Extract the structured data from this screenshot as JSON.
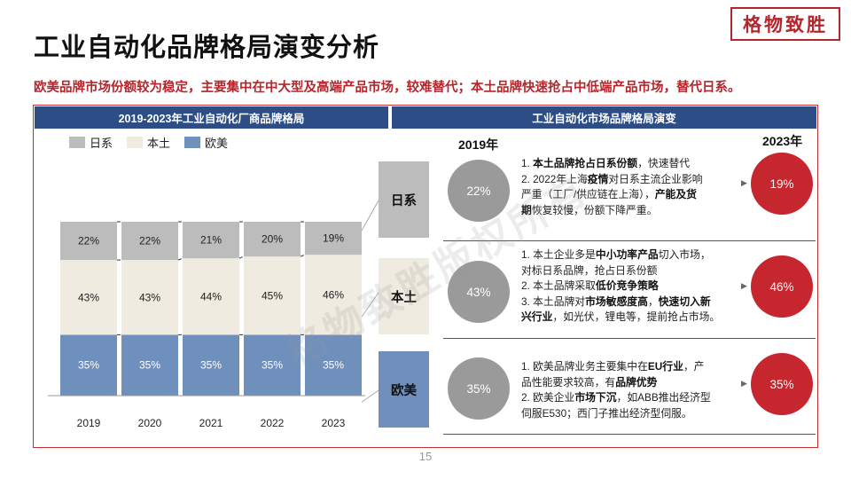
{
  "title": "工业自动化品牌格局演变分析",
  "brand_stamp": "格物致胜",
  "subtitle": "欧美品牌市场份额较为稳定，主要集中在中大型及高端产品市场，较难替代；本土品牌快速抢占中低端产品市场，替代日系。",
  "left_header": "2019-2023年工业自动化厂商品牌格局",
  "right_header": "工业自动化市场品牌格局演变",
  "colors": {
    "japan": "#bcbcbc",
    "local": "#efebe0",
    "western": "#6f8fbd",
    "accent_red": "#c6262e",
    "header_blue": "#2c4d86"
  },
  "chart_data": {
    "type": "bar",
    "stacked": true,
    "categories": [
      "2019",
      "2020",
      "2021",
      "2022",
      "2023"
    ],
    "series": [
      {
        "name": "欧美",
        "values": [
          35,
          35,
          35,
          35,
          35
        ],
        "labels": [
          "35%",
          "35%",
          "35%",
          "35%",
          "35%"
        ]
      },
      {
        "name": "本土",
        "values": [
          43,
          43,
          44,
          45,
          46
        ],
        "labels": [
          "43%",
          "43%",
          "44%",
          "45%",
          "46%"
        ]
      },
      {
        "name": "日系",
        "values": [
          22,
          22,
          21,
          20,
          19
        ],
        "labels": [
          "22%",
          "22%",
          "21%",
          "20%",
          "19%"
        ]
      }
    ],
    "ylim": [
      0,
      100
    ],
    "legend_position": "top-left",
    "legend": [
      "日系",
      "本土",
      "欧美"
    ]
  },
  "year_start": "2019年",
  "year_end": "2023年",
  "rows": [
    {
      "category": "日系",
      "start": "22%",
      "end": "19%",
      "lines": [
        [
          {
            "t": "1. "
          },
          {
            "t": "本土品牌抢占日系份额",
            "b": true
          },
          {
            "t": "，快速替代"
          }
        ],
        [
          {
            "t": "2. 2022年上海"
          },
          {
            "t": "疫情",
            "b": true
          },
          {
            "t": "对日系主流企业影响"
          }
        ],
        [
          {
            "t": "严重（工厂/供应链在上海），"
          },
          {
            "t": "产能及货",
            "b": true
          }
        ],
        [
          {
            "t": "期",
            "b": true
          },
          {
            "t": "恢复较慢，份额下降严重。"
          }
        ]
      ]
    },
    {
      "category": "本土",
      "start": "43%",
      "end": "46%",
      "lines": [
        [
          {
            "t": "1. 本土企业多是"
          },
          {
            "t": "中小功率产品",
            "b": true
          },
          {
            "t": "切入市场，"
          }
        ],
        [
          {
            "t": "对标日系品牌，抢占日系份额"
          }
        ],
        [
          {
            "t": "2. 本土品牌采取"
          },
          {
            "t": "低价竞争策略",
            "b": true
          }
        ],
        [
          {
            "t": "3. 本土品牌对"
          },
          {
            "t": "市场敏感度高",
            "b": true
          },
          {
            "t": "，"
          },
          {
            "t": "快速切入新",
            "b": true
          }
        ],
        [
          {
            "t": "兴行业",
            "b": true
          },
          {
            "t": "，如光伏，锂电等，提前抢占市场。"
          }
        ]
      ]
    },
    {
      "category": "欧美",
      "start": "35%",
      "end": "35%",
      "lines": [
        [
          {
            "t": "1. 欧美品牌业务主要集中在"
          },
          {
            "t": "EU行业",
            "b": true
          },
          {
            "t": "，产"
          }
        ],
        [
          {
            "t": "品性能要求较高，有"
          },
          {
            "t": "品牌优势",
            "b": true
          }
        ],
        [
          {
            "t": "2. 欧美企业"
          },
          {
            "t": "市场下沉",
            "b": true
          },
          {
            "t": "，如ABB推出经济型"
          }
        ],
        [
          {
            "t": "伺服E530；西门子推出经济型伺服。"
          }
        ]
      ]
    }
  ],
  "watermark": "格物致胜版权所有",
  "page_number": "15"
}
